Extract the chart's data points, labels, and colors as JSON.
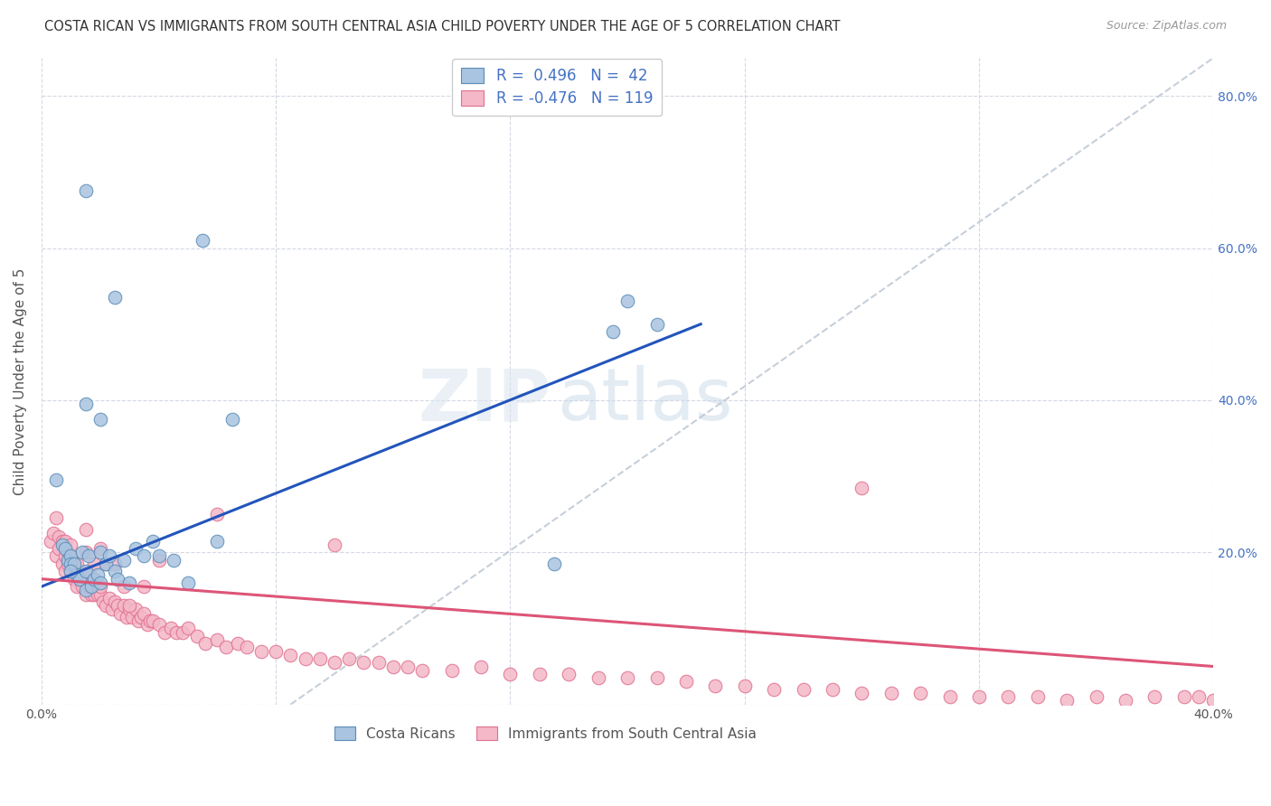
{
  "title": "COSTA RICAN VS IMMIGRANTS FROM SOUTH CENTRAL ASIA CHILD POVERTY UNDER THE AGE OF 5 CORRELATION CHART",
  "source": "Source: ZipAtlas.com",
  "ylabel": "Child Poverty Under the Age of 5",
  "xlim": [
    0.0,
    0.4
  ],
  "ylim": [
    0.0,
    0.85
  ],
  "xticks": [
    0.0,
    0.08,
    0.16,
    0.24,
    0.32,
    0.4
  ],
  "xticklabels": [
    "0.0%",
    "",
    "",
    "",
    "",
    "40.0%"
  ],
  "yticks": [
    0.0,
    0.2,
    0.4,
    0.6,
    0.8
  ],
  "yticklabels_right": [
    "",
    "20.0%",
    "40.0%",
    "60.0%",
    "80.0%"
  ],
  "blue_color": "#a8c4e0",
  "blue_edge": "#5b8db8",
  "pink_color": "#f4b8c8",
  "pink_edge": "#e07090",
  "blue_line_color": "#2255bb",
  "pink_line_color": "#dd5577",
  "gray_line_color": "#b8c4d0",
  "R_blue": 0.496,
  "N_blue": 42,
  "R_pink": -0.476,
  "N_pink": 119,
  "legend_label_blue": "Costa Ricans",
  "legend_label_pink": "Immigrants from South Central Asia",
  "watermark_zip": "ZIP",
  "watermark_atlas": "atlas",
  "blue_line_x": [
    0.0,
    0.225
  ],
  "blue_line_y": [
    0.155,
    0.5
  ],
  "pink_line_x": [
    0.0,
    0.4
  ],
  "pink_line_y": [
    0.165,
    0.05
  ],
  "gray_line_x": [
    0.085,
    0.4
  ],
  "gray_line_y": [
    0.0,
    0.85
  ],
  "blue_scatter_x": [
    0.005,
    0.007,
    0.008,
    0.009,
    0.01,
    0.01,
    0.011,
    0.012,
    0.013,
    0.014,
    0.015,
    0.015,
    0.016,
    0.017,
    0.018,
    0.019,
    0.02,
    0.02,
    0.022,
    0.023,
    0.025,
    0.026,
    0.028,
    0.03,
    0.032,
    0.035,
    0.038,
    0.04,
    0.045,
    0.05,
    0.055,
    0.06,
    0.065,
    0.01,
    0.015,
    0.02,
    0.175,
    0.195,
    0.2,
    0.21,
    0.015,
    0.025
  ],
  "blue_scatter_y": [
    0.295,
    0.21,
    0.205,
    0.19,
    0.195,
    0.185,
    0.185,
    0.17,
    0.165,
    0.2,
    0.175,
    0.15,
    0.195,
    0.155,
    0.165,
    0.17,
    0.2,
    0.16,
    0.185,
    0.195,
    0.175,
    0.165,
    0.19,
    0.16,
    0.205,
    0.195,
    0.215,
    0.195,
    0.19,
    0.16,
    0.61,
    0.215,
    0.375,
    0.175,
    0.395,
    0.375,
    0.185,
    0.49,
    0.53,
    0.5,
    0.675,
    0.535
  ],
  "pink_scatter_x": [
    0.003,
    0.004,
    0.005,
    0.006,
    0.006,
    0.007,
    0.007,
    0.008,
    0.008,
    0.009,
    0.009,
    0.01,
    0.01,
    0.011,
    0.011,
    0.012,
    0.012,
    0.013,
    0.013,
    0.014,
    0.014,
    0.015,
    0.015,
    0.016,
    0.016,
    0.017,
    0.017,
    0.018,
    0.018,
    0.019,
    0.019,
    0.02,
    0.02,
    0.021,
    0.022,
    0.023,
    0.024,
    0.025,
    0.026,
    0.027,
    0.028,
    0.029,
    0.03,
    0.031,
    0.032,
    0.033,
    0.034,
    0.035,
    0.036,
    0.037,
    0.038,
    0.04,
    0.042,
    0.044,
    0.046,
    0.048,
    0.05,
    0.053,
    0.056,
    0.06,
    0.063,
    0.067,
    0.07,
    0.075,
    0.08,
    0.085,
    0.09,
    0.095,
    0.1,
    0.105,
    0.11,
    0.115,
    0.12,
    0.125,
    0.13,
    0.14,
    0.15,
    0.16,
    0.17,
    0.18,
    0.19,
    0.2,
    0.21,
    0.22,
    0.23,
    0.24,
    0.25,
    0.26,
    0.27,
    0.28,
    0.29,
    0.3,
    0.31,
    0.32,
    0.33,
    0.34,
    0.35,
    0.36,
    0.37,
    0.38,
    0.39,
    0.395,
    0.4,
    0.005,
    0.008,
    0.01,
    0.012,
    0.015,
    0.015,
    0.018,
    0.02,
    0.022,
    0.025,
    0.028,
    0.03,
    0.035,
    0.04,
    0.06,
    0.1,
    0.28
  ],
  "pink_scatter_y": [
    0.215,
    0.225,
    0.195,
    0.205,
    0.22,
    0.185,
    0.215,
    0.195,
    0.175,
    0.185,
    0.2,
    0.195,
    0.175,
    0.185,
    0.165,
    0.175,
    0.155,
    0.165,
    0.175,
    0.155,
    0.165,
    0.145,
    0.17,
    0.155,
    0.175,
    0.145,
    0.16,
    0.145,
    0.165,
    0.155,
    0.145,
    0.145,
    0.155,
    0.135,
    0.13,
    0.14,
    0.125,
    0.135,
    0.13,
    0.12,
    0.13,
    0.115,
    0.125,
    0.115,
    0.125,
    0.11,
    0.115,
    0.12,
    0.105,
    0.11,
    0.11,
    0.105,
    0.095,
    0.1,
    0.095,
    0.095,
    0.1,
    0.09,
    0.08,
    0.085,
    0.075,
    0.08,
    0.075,
    0.07,
    0.07,
    0.065,
    0.06,
    0.06,
    0.055,
    0.06,
    0.055,
    0.055,
    0.05,
    0.05,
    0.045,
    0.045,
    0.05,
    0.04,
    0.04,
    0.04,
    0.035,
    0.035,
    0.035,
    0.03,
    0.025,
    0.025,
    0.02,
    0.02,
    0.02,
    0.015,
    0.015,
    0.015,
    0.01,
    0.01,
    0.01,
    0.01,
    0.005,
    0.01,
    0.005,
    0.01,
    0.01,
    0.01,
    0.005,
    0.245,
    0.215,
    0.21,
    0.185,
    0.23,
    0.2,
    0.185,
    0.205,
    0.185,
    0.185,
    0.155,
    0.13,
    0.155,
    0.19,
    0.25,
    0.21,
    0.285
  ]
}
